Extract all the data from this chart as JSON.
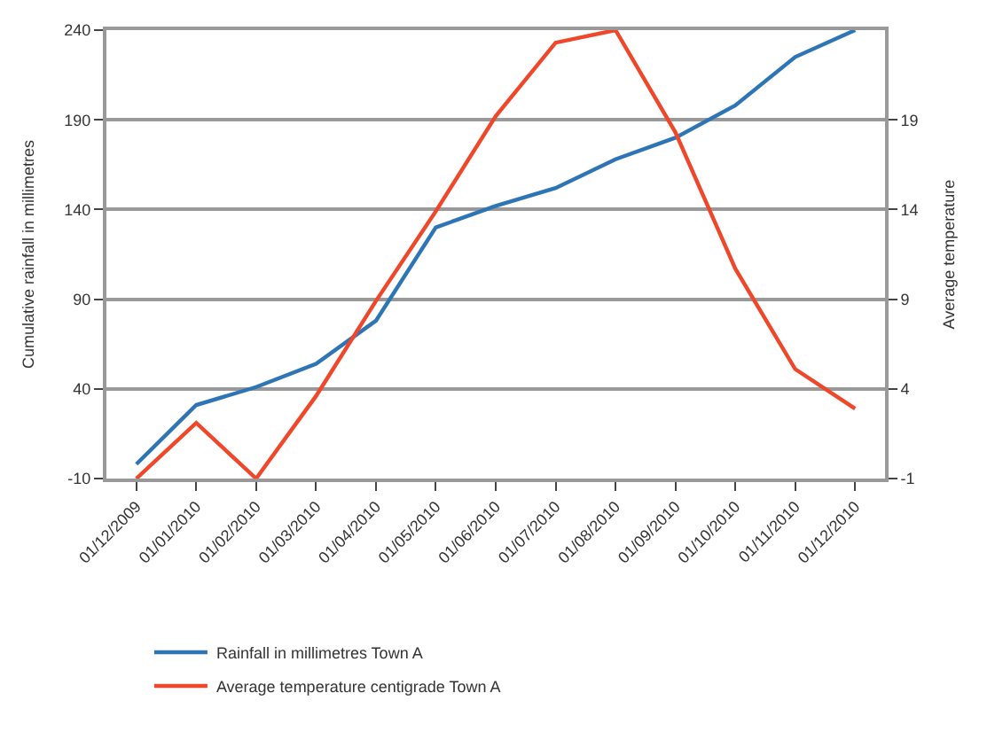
{
  "chart_data": {
    "type": "line",
    "ylabel": "Cumulative rainfall in millimetres",
    "y2label": "Average temperature",
    "categories": [
      "01/12/2009",
      "01/01/2010",
      "01/02/2010",
      "01/03/2010",
      "01/04/2010",
      "01/05/2010",
      "01/06/2010",
      "01/07/2010",
      "01/08/2010",
      "01/09/2010",
      "01/10/2010",
      "01/11/2010",
      "01/12/2010"
    ],
    "series": [
      {
        "name": "Rainfall in millimetres Town A",
        "color": "#2e75b6",
        "values": [
          -2,
          31,
          41,
          54,
          78,
          130,
          142,
          152,
          168,
          180,
          198,
          225,
          240
        ]
      },
      {
        "name": "Average temperature centigrade Town A",
        "color": "#f0462a",
        "axis": "y2",
        "values": [
          -1,
          2.1,
          -1,
          3.6,
          8.9,
          13.9,
          19.2,
          23.3,
          24,
          18.3,
          10.7,
          5.1,
          2.9
        ]
      }
    ],
    "ylim": [
      -10,
      240
    ],
    "yticks": [
      -10,
      40,
      90,
      140,
      190,
      240
    ],
    "y2lim": [
      -1,
      24
    ],
    "y2ticks": [
      -1,
      4,
      9,
      14,
      19
    ],
    "grid": "y",
    "legend": "bottom left",
    "marker": "none",
    "line_style": "solid"
  }
}
